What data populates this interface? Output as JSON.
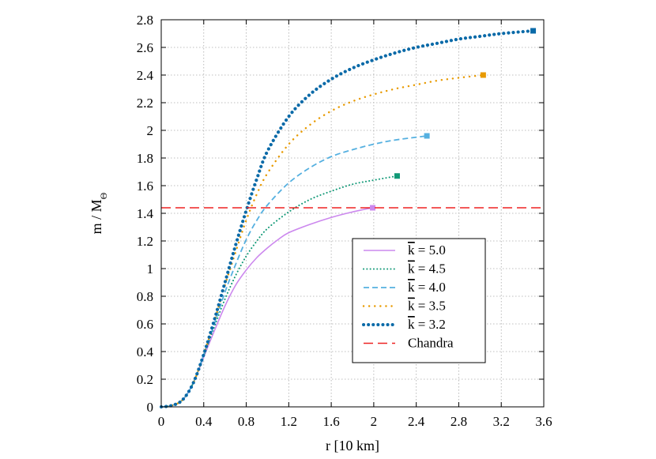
{
  "chart_data": {
    "type": "line",
    "xlabel": "r [10 km]",
    "ylabel": "m / M",
    "ylabel_sub": "Θ",
    "xlim": [
      0,
      3.6
    ],
    "ylim": [
      0,
      2.8
    ],
    "xticks": [
      "0",
      "0.4",
      "0.8",
      "1.2",
      "1.6",
      "2",
      "2.4",
      "2.8",
      "3.2",
      "3.6"
    ],
    "yticks": [
      "0",
      "0.2",
      "0.4",
      "0.6",
      "0.8",
      "1",
      "1.2",
      "1.4",
      "1.6",
      "1.8",
      "2",
      "2.2",
      "2.4",
      "2.6",
      "2.8"
    ],
    "grid": true,
    "legend_position": "bottom-right",
    "series": [
      {
        "name": "k = 5.0",
        "name_prefix": "k",
        "name_value": " = 5.0",
        "color": "#cc88ee",
        "style": "solid",
        "points": [
          [
            0,
            0
          ],
          [
            0.1,
            0.01
          ],
          [
            0.2,
            0.05
          ],
          [
            0.3,
            0.17
          ],
          [
            0.4,
            0.36
          ],
          [
            0.5,
            0.55
          ],
          [
            0.6,
            0.73
          ],
          [
            0.7,
            0.88
          ],
          [
            0.8,
            0.99
          ],
          [
            0.9,
            1.08
          ],
          [
            1.0,
            1.15
          ],
          [
            1.1,
            1.21
          ],
          [
            1.2,
            1.26
          ],
          [
            1.4,
            1.32
          ],
          [
            1.6,
            1.37
          ],
          [
            1.8,
            1.41
          ],
          [
            1.99,
            1.44
          ]
        ]
      },
      {
        "name": "k = 4.5",
        "name_prefix": "k",
        "name_value": " = 4.5",
        "color": "#119977",
        "style": "dotted",
        "points": [
          [
            0,
            0
          ],
          [
            0.1,
            0.01
          ],
          [
            0.2,
            0.05
          ],
          [
            0.3,
            0.17
          ],
          [
            0.4,
            0.37
          ],
          [
            0.5,
            0.58
          ],
          [
            0.6,
            0.78
          ],
          [
            0.7,
            0.95
          ],
          [
            0.8,
            1.09
          ],
          [
            0.9,
            1.2
          ],
          [
            1.0,
            1.29
          ],
          [
            1.2,
            1.41
          ],
          [
            1.4,
            1.5
          ],
          [
            1.6,
            1.56
          ],
          [
            1.8,
            1.61
          ],
          [
            2.0,
            1.64
          ],
          [
            2.22,
            1.67
          ]
        ]
      },
      {
        "name": "k = 4.0",
        "name_prefix": "k",
        "name_value": " = 4.0",
        "color": "#55b0e0",
        "style": "dashed",
        "points": [
          [
            0,
            0
          ],
          [
            0.1,
            0.01
          ],
          [
            0.2,
            0.05
          ],
          [
            0.3,
            0.17
          ],
          [
            0.4,
            0.38
          ],
          [
            0.5,
            0.6
          ],
          [
            0.6,
            0.83
          ],
          [
            0.7,
            1.03
          ],
          [
            0.8,
            1.21
          ],
          [
            0.9,
            1.35
          ],
          [
            1.0,
            1.46
          ],
          [
            1.2,
            1.62
          ],
          [
            1.4,
            1.73
          ],
          [
            1.6,
            1.81
          ],
          [
            1.8,
            1.86
          ],
          [
            2.0,
            1.9
          ],
          [
            2.2,
            1.93
          ],
          [
            2.5,
            1.96
          ]
        ]
      },
      {
        "name": "k = 3.5",
        "name_prefix": "k",
        "name_value": " = 3.5",
        "color": "#e89a00",
        "style": "dotted-sparse",
        "points": [
          [
            0,
            0
          ],
          [
            0.1,
            0.01
          ],
          [
            0.2,
            0.05
          ],
          [
            0.3,
            0.17
          ],
          [
            0.4,
            0.38
          ],
          [
            0.5,
            0.62
          ],
          [
            0.6,
            0.88
          ],
          [
            0.7,
            1.12
          ],
          [
            0.8,
            1.35
          ],
          [
            0.9,
            1.54
          ],
          [
            1.0,
            1.69
          ],
          [
            1.2,
            1.9
          ],
          [
            1.4,
            2.04
          ],
          [
            1.6,
            2.14
          ],
          [
            1.8,
            2.21
          ],
          [
            2.0,
            2.26
          ],
          [
            2.2,
            2.3
          ],
          [
            2.4,
            2.33
          ],
          [
            2.6,
            2.36
          ],
          [
            2.8,
            2.38
          ],
          [
            3.03,
            2.4
          ]
        ]
      },
      {
        "name": "k = 3.2",
        "name_prefix": "k",
        "name_value": " = 3.2",
        "color": "#0a6aa8",
        "style": "dotted-thick",
        "points": [
          [
            0,
            0
          ],
          [
            0.1,
            0.01
          ],
          [
            0.2,
            0.05
          ],
          [
            0.3,
            0.17
          ],
          [
            0.4,
            0.38
          ],
          [
            0.5,
            0.63
          ],
          [
            0.6,
            0.9
          ],
          [
            0.7,
            1.17
          ],
          [
            0.8,
            1.42
          ],
          [
            0.9,
            1.65
          ],
          [
            1.0,
            1.85
          ],
          [
            1.2,
            2.1
          ],
          [
            1.4,
            2.26
          ],
          [
            1.6,
            2.37
          ],
          [
            1.8,
            2.45
          ],
          [
            2.0,
            2.51
          ],
          [
            2.2,
            2.56
          ],
          [
            2.4,
            2.6
          ],
          [
            2.6,
            2.63
          ],
          [
            2.8,
            2.66
          ],
          [
            3.0,
            2.68
          ],
          [
            3.2,
            2.7
          ],
          [
            3.5,
            2.72
          ]
        ]
      },
      {
        "name": "Chandra",
        "color": "#ee2222",
        "style": "long-dashed",
        "points": [
          [
            0,
            1.44
          ],
          [
            3.6,
            1.44
          ]
        ]
      }
    ]
  }
}
